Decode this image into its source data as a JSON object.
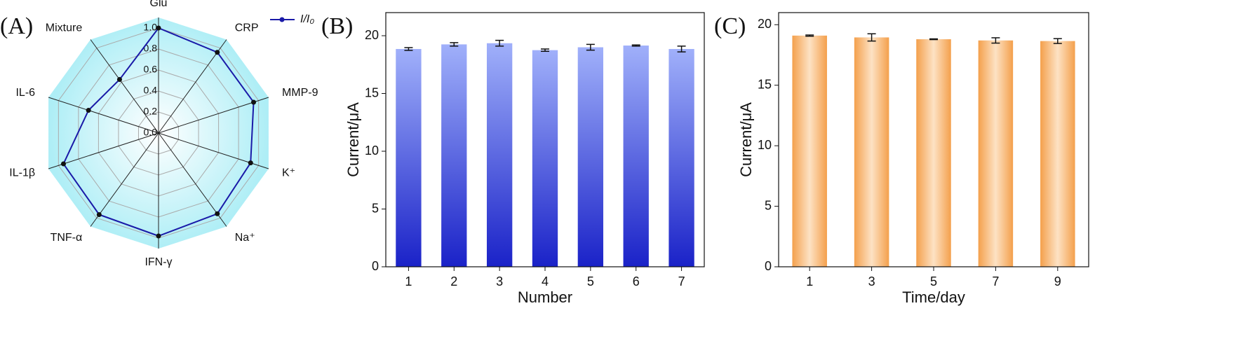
{
  "chart_data": [
    {
      "type": "radar",
      "label": "(A)",
      "categories": [
        "Glu",
        "CRP",
        "MMP-9",
        "K⁺",
        "Na⁺",
        "IFN-γ",
        "TNF-α",
        "IL-1β",
        "IL-6",
        "Mixture"
      ],
      "series": [
        {
          "name": "I/I₀",
          "color": "#1a1aa8",
          "values": [
            1.0,
            0.95,
            0.95,
            0.92,
            0.95,
            0.98,
            0.96,
            0.95,
            0.7,
            0.63
          ]
        }
      ],
      "rlim": [
        0,
        1.1
      ],
      "rticks": [
        {
          "value": 0,
          "label": "0.0"
        },
        {
          "value": 0.2,
          "label": "0.2"
        },
        {
          "value": 0.4,
          "label": "0.4"
        },
        {
          "value": 0.6,
          "label": "0.6"
        },
        {
          "value": 0.8,
          "label": "0.8"
        },
        {
          "value": 1,
          "label": "1.0"
        }
      ],
      "background": "#aeeef6",
      "grid": true,
      "legend": "top-right"
    },
    {
      "type": "bar",
      "label": "(B)",
      "xlabel": "Number",
      "ylabel": "Current/μA",
      "categories": [
        "1",
        "2",
        "3",
        "4",
        "5",
        "6",
        "7"
      ],
      "values": [
        18.85,
        19.25,
        19.35,
        18.75,
        19.0,
        19.15,
        18.85
      ],
      "errors": [
        0.12,
        0.15,
        0.25,
        0.1,
        0.25,
        0.05,
        0.25
      ],
      "gradient": [
        "#a0b0fa",
        "#1a22c8"
      ],
      "gradient_direction": "vertical",
      "ylim": [
        0,
        22
      ],
      "yticks": [
        0,
        5,
        10,
        15,
        20
      ]
    },
    {
      "type": "bar",
      "label": "(C)",
      "xlabel": "Time/day",
      "ylabel": "Current/μA",
      "categories": [
        "1",
        "3",
        "5",
        "7",
        "9"
      ],
      "values": [
        19.1,
        18.95,
        18.8,
        18.7,
        18.65
      ],
      "errors": [
        0.05,
        0.3,
        0.03,
        0.22,
        0.2
      ],
      "gradient": [
        "#f4a04c",
        "#fde2c4",
        "#f4a04c"
      ],
      "gradient_direction": "horizontal",
      "ylim": [
        0,
        21
      ],
      "yticks": [
        0,
        5,
        10,
        15,
        20
      ]
    }
  ]
}
